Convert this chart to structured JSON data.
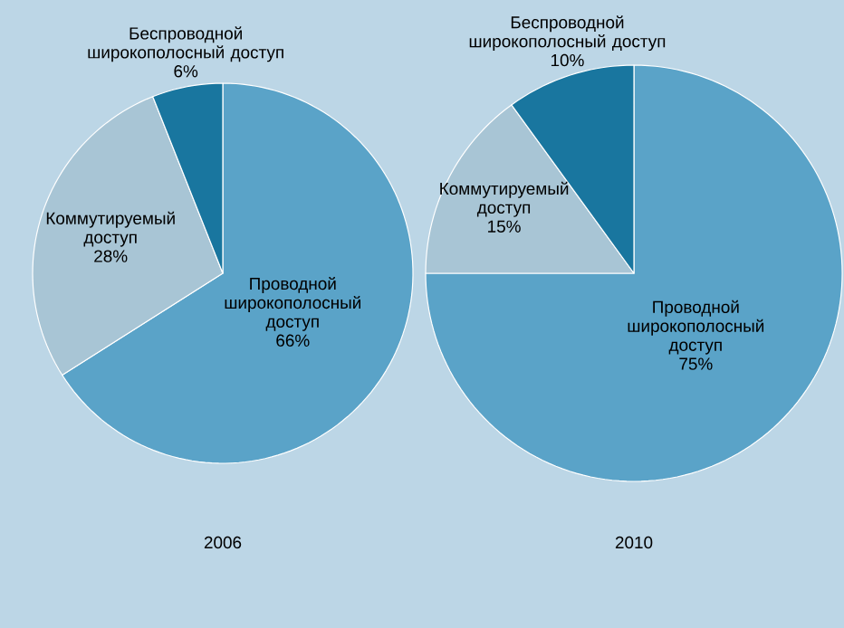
{
  "chart_data": [
    {
      "type": "pie",
      "title": "2006",
      "categories": [
        "Проводной широкополосный доступ",
        "Коммутируемый доступ",
        "Беспроводной широкополосный доступ"
      ],
      "values": [
        66,
        28,
        6
      ],
      "value_labels": [
        "66%",
        "28%",
        "6%"
      ],
      "colors": [
        "#5aa3c8",
        "#a8c5d5",
        "#19769f"
      ]
    },
    {
      "type": "pie",
      "title": "2010",
      "categories": [
        "Проводной широкополосный доступ",
        "Коммутируемый доступ",
        "Беспроводной широкополосный доступ"
      ],
      "values": [
        75,
        15,
        10
      ],
      "value_labels": [
        "75%",
        "15%",
        "10%"
      ],
      "colors": [
        "#5aa3c8",
        "#a8c5d5",
        "#19769f"
      ]
    }
  ]
}
